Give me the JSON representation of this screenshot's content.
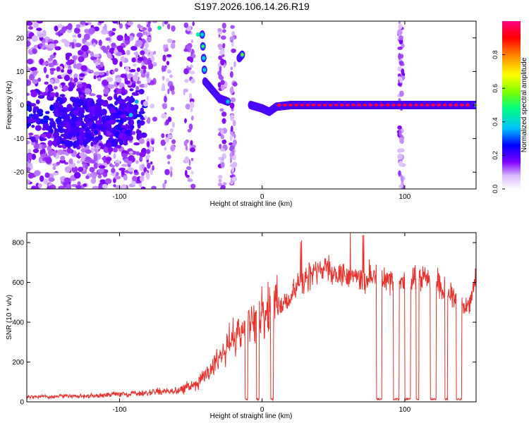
{
  "title": "S197.2026.106.14.26.R19",
  "chart_data": [
    {
      "type": "heatmap",
      "xlabel": "Height of straight line (km)",
      "ylabel": "Frequency (Hz)",
      "xlim": [
        -165,
        150
      ],
      "ylim": [
        -25,
        25
      ],
      "xticks": [
        -100,
        0,
        100
      ],
      "xtick_labels": [
        "-100",
        "0",
        "100"
      ],
      "yticks": [
        -20,
        -10,
        0,
        10,
        20
      ],
      "ytick_labels": [
        "-20",
        "-10",
        "0",
        "10",
        "20"
      ],
      "colorbar": {
        "label": "Normalized spectral amplitude",
        "range": [
          0,
          1
        ],
        "ticks": [
          0,
          0.2,
          0.4,
          0.6,
          0.8
        ],
        "tick_labels": [
          "0.0",
          "0.2",
          "0.4",
          "0.6",
          "0.8"
        ],
        "colors": [
          "#ffffff",
          "#d8b8ff",
          "#8000ff",
          "#0000ff",
          "#00c0ff",
          "#00ff80",
          "#80ff00",
          "#ffff00",
          "#ff8000",
          "#ff0000",
          "#ff0080"
        ]
      },
      "features": [
        {
          "name": "noise region",
          "x_range": [
            -165,
            -85
          ],
          "freq_range": [
            -25,
            25
          ],
          "amplitude": 0.15
        },
        {
          "name": "descending trace",
          "points": [
            [
              -42,
              21
            ],
            [
              -40,
              7
            ],
            [
              -36,
              5
            ],
            [
              -30,
              2
            ],
            [
              -24,
              1
            ]
          ],
          "amplitude": 0.5
        },
        {
          "name": "trace",
          "points": [
            [
              -16,
              14
            ],
            [
              -14,
              15
            ]
          ],
          "amplitude": 0.6
        },
        {
          "name": "carrier line",
          "points": [
            [
              -8,
              0
            ],
            [
              0,
              -1
            ],
            [
              5,
              -2
            ],
            [
              10,
              -0.5
            ],
            [
              20,
              0
            ],
            [
              75,
              0
            ],
            [
              150,
              0
            ]
          ],
          "amplitude": 0.85
        }
      ]
    },
    {
      "type": "line",
      "xlabel": "Height of straight line (km)",
      "ylabel": "SNR (10 * v/v)",
      "xlim": [
        -165,
        150
      ],
      "ylim": [
        0,
        850
      ],
      "xticks": [
        -100,
        0,
        100
      ],
      "xtick_labels": [
        "-100",
        "0",
        "100"
      ],
      "yticks": [
        0,
        200,
        400,
        600,
        800
      ],
      "ytick_labels": [
        "0",
        "200",
        "400",
        "600",
        "800"
      ],
      "line_color": "#e8312b",
      "series_profile": {
        "x": [
          -165,
          -120,
          -80,
          -60,
          -45,
          -35,
          -25,
          -15,
          -8,
          0,
          10,
          20,
          25,
          30,
          35,
          40,
          50,
          60,
          70,
          80,
          90,
          100,
          110,
          120,
          130,
          140,
          145,
          150
        ],
        "y": [
          25,
          30,
          45,
          55,
          90,
          180,
          280,
          350,
          420,
          430,
          470,
          520,
          580,
          620,
          640,
          680,
          650,
          640,
          620,
          630,
          600,
          610,
          620,
          610,
          560,
          480,
          480,
          600
        ]
      },
      "dropouts": [
        [
          -12,
          -10
        ],
        [
          -4,
          -2
        ],
        [
          6,
          8
        ],
        [
          80,
          84
        ],
        [
          92,
          96
        ],
        [
          100,
          104
        ],
        [
          108,
          110
        ],
        [
          118,
          122
        ],
        [
          128,
          130
        ],
        [
          136,
          140
        ]
      ]
    }
  ]
}
